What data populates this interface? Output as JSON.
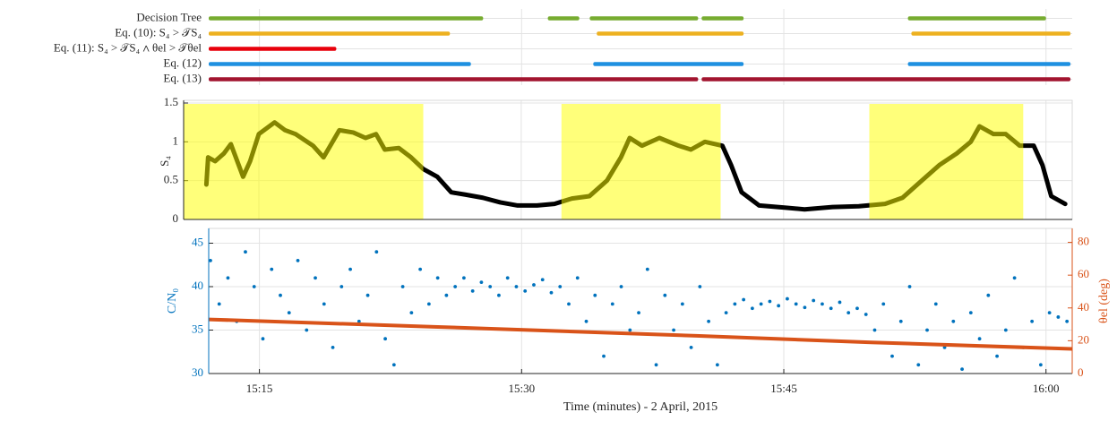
{
  "chart_data": [
    {
      "type": "timeline",
      "categories": [
        "Decision Tree",
        "Eq. (10): S₄ > 𝒯S₄",
        "Eq. (11): S₄ > 𝒯S₄ ∧ θel > 𝒯θel",
        "Eq. (12)",
        "Eq. (13)"
      ],
      "colors": [
        "#77ac30",
        "#edb120",
        "#e8000b",
        "#1e90e0",
        "#a2142f"
      ],
      "segments": [
        [
          [
            12.1,
            27.8
          ],
          [
            31.5,
            33.3
          ],
          [
            33.9,
            40.1
          ],
          [
            40.3,
            42.7
          ],
          [
            52.1,
            60.0
          ]
        ],
        [
          [
            12.1,
            25.9
          ],
          [
            34.3,
            42.7
          ],
          [
            52.3,
            61.4
          ]
        ],
        [
          [
            12.1,
            19.4
          ]
        ],
        [
          [
            12.1,
            27.1
          ],
          [
            34.1,
            42.7
          ],
          [
            52.1,
            61.4
          ]
        ],
        [
          [
            12.1,
            40.1
          ],
          [
            40.3,
            61.4
          ]
        ]
      ],
      "xlim": [
        12.1,
        61.5
      ],
      "xticks": [
        15,
        30,
        45,
        60
      ],
      "grid": true
    },
    {
      "type": "line",
      "ylabel": "S₄",
      "x": [
        12.0,
        12.1,
        12.5,
        13.0,
        13.4,
        14.1,
        14.5,
        15.0,
        15.9,
        16.5,
        17.1,
        18.1,
        18.7,
        19.6,
        20.4,
        21.1,
        21.7,
        22.2,
        23.0,
        23.7,
        24.4,
        25.2,
        26.0,
        26.8,
        27.8,
        28.8,
        29.8,
        30.9,
        31.9,
        32.9,
        33.9,
        34.9,
        35.7,
        36.2,
        36.9,
        37.9,
        39.0,
        39.7,
        40.5,
        41.5,
        42.0,
        42.6,
        43.6,
        45.2,
        46.2,
        47.8,
        49.3,
        50.8,
        51.8,
        52.9,
        53.9,
        54.9,
        55.7,
        56.2,
        57.0,
        57.7,
        58.5,
        59.3,
        59.8,
        60.3,
        61.1
      ],
      "values": [
        0.45,
        0.8,
        0.75,
        0.85,
        0.97,
        0.55,
        0.75,
        1.1,
        1.25,
        1.15,
        1.1,
        0.95,
        0.8,
        1.15,
        1.12,
        1.05,
        1.1,
        0.9,
        0.92,
        0.8,
        0.65,
        0.55,
        0.35,
        0.32,
        0.28,
        0.22,
        0.18,
        0.18,
        0.2,
        0.27,
        0.3,
        0.5,
        0.8,
        1.05,
        0.95,
        1.05,
        0.95,
        0.9,
        1.0,
        0.95,
        0.7,
        0.35,
        0.18,
        0.15,
        0.13,
        0.16,
        0.17,
        0.2,
        0.28,
        0.5,
        0.7,
        0.85,
        1.0,
        1.2,
        1.1,
        1.1,
        0.95,
        0.95,
        0.7,
        0.3,
        0.2
      ],
      "color": "#000000",
      "highlights": [
        [
          10.7,
          24.4
        ],
        [
          32.3,
          41.4
        ],
        [
          49.9,
          58.7
        ]
      ],
      "highlight_color": "#ffff00",
      "xlim": [
        10.7,
        61.5
      ],
      "xticks": [
        15,
        30,
        45,
        60
      ],
      "ylim": [
        0,
        1.5
      ],
      "yticks": [
        0,
        0.5,
        1,
        1.5
      ],
      "grid": true
    },
    {
      "type": "scatter",
      "xlabel": "Time (minutes) - 2 April, 2015",
      "ylabel": "C/N₀",
      "y2label": "θel (deg)",
      "series": [
        {
          "type": "scatter",
          "color": "#0072bd",
          "x": [
            12.2,
            12.7,
            13.2,
            13.7,
            14.2,
            14.7,
            15.2,
            15.7,
            16.2,
            16.7,
            17.2,
            17.7,
            18.2,
            18.7,
            19.2,
            19.7,
            20.2,
            20.7,
            21.2,
            21.7,
            22.2,
            22.7,
            23.2,
            23.7,
            24.2,
            24.7,
            25.2,
            25.7,
            26.2,
            26.7,
            27.2,
            27.7,
            28.2,
            28.7,
            29.2,
            29.7,
            30.2,
            30.7,
            31.2,
            31.7,
            32.2,
            32.7,
            33.2,
            33.7,
            34.2,
            34.7,
            35.2,
            35.7,
            36.2,
            36.7,
            37.2,
            37.7,
            38.2,
            38.7,
            39.2,
            39.7,
            40.2,
            40.7,
            41.2,
            41.7,
            42.2,
            42.7,
            43.2,
            43.7,
            44.2,
            44.7,
            45.2,
            45.7,
            46.2,
            46.7,
            47.2,
            47.7,
            48.2,
            48.7,
            49.2,
            49.7,
            50.2,
            50.7,
            51.2,
            51.7,
            52.2,
            52.7,
            53.2,
            53.7,
            54.2,
            54.7,
            55.2,
            55.7,
            56.2,
            56.7,
            57.2,
            57.7,
            58.2,
            58.7,
            59.2,
            59.7,
            60.2,
            60.7,
            61.2
          ],
          "values": [
            43,
            38,
            41,
            36,
            44,
            40,
            34,
            42,
            39,
            37,
            43,
            35,
            41,
            38,
            33,
            40,
            42,
            36,
            39,
            44,
            34,
            31,
            40,
            37,
            42,
            38,
            41,
            39,
            40,
            41,
            39.5,
            40.5,
            40,
            39,
            41,
            40,
            39.5,
            40.2,
            40.8,
            39.3,
            40,
            38,
            41,
            36,
            39,
            32,
            38,
            40,
            35,
            37,
            42,
            31,
            39,
            35,
            38,
            33,
            40,
            36,
            31,
            37,
            38,
            38.5,
            37.5,
            38,
            38.3,
            37.8,
            38.6,
            38,
            37.6,
            38.4,
            38,
            37.5,
            38.2,
            37,
            37.5,
            36.8,
            35,
            38,
            32,
            36,
            40,
            31,
            35,
            38,
            33,
            36,
            30.5,
            37,
            34,
            39,
            32,
            35,
            41,
            33,
            36,
            31,
            37,
            36.5,
            36
          ]
        },
        {
          "type": "line",
          "axis": "y2",
          "color": "#d95319",
          "x": [
            12.1,
            25,
            40,
            50,
            61.5
          ],
          "values": [
            33,
            28.5,
            23,
            19,
            15
          ]
        }
      ],
      "xlim": [
        12.1,
        61.5
      ],
      "xticks": [
        {
          "value": 15,
          "label": "15:15"
        },
        {
          "value": 30,
          "label": "15:30"
        },
        {
          "value": 45,
          "label": "15:45"
        },
        {
          "value": 60,
          "label": "16:00"
        }
      ],
      "ylim": [
        30,
        46.7
      ],
      "yticks": [
        30,
        35,
        40,
        45
      ],
      "y2lim": [
        0,
        88.5
      ],
      "y2ticks": [
        0,
        20,
        40,
        60,
        80
      ],
      "grid": true
    }
  ]
}
